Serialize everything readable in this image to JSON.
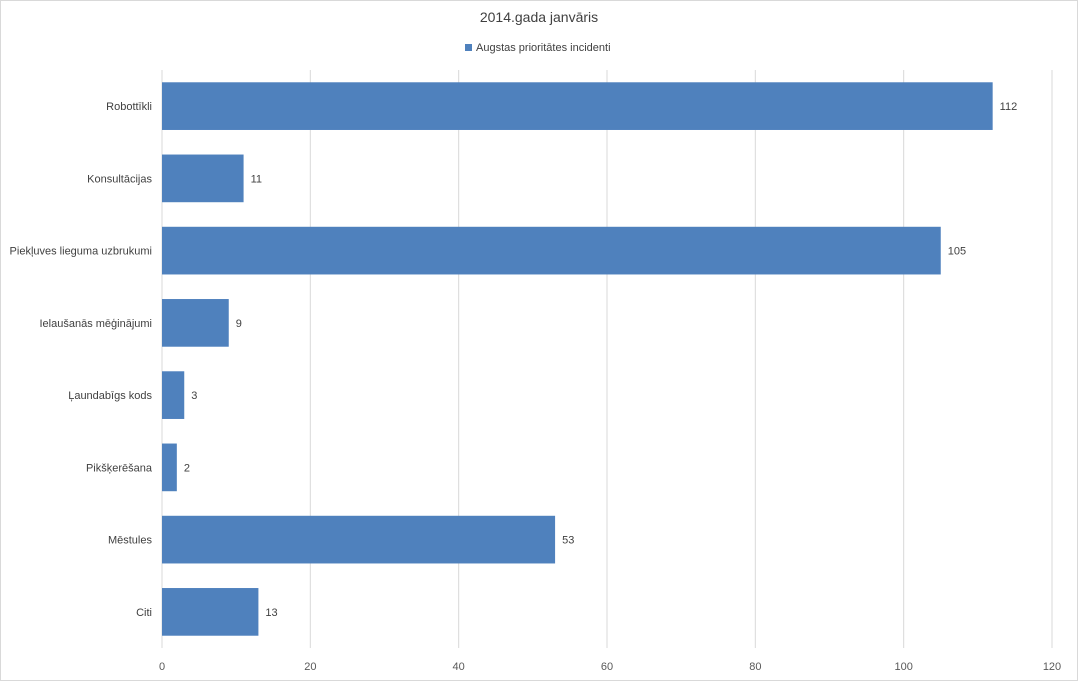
{
  "chart_data": {
    "type": "bar",
    "orientation": "horizontal",
    "title": "2014.gada janvāris",
    "xlabel": "",
    "ylabel": "",
    "xlim": [
      0,
      120
    ],
    "x_ticks": [
      0,
      20,
      40,
      60,
      80,
      100,
      120
    ],
    "grid": "vertical",
    "legend_position": "top",
    "categories": [
      "Robottīkli",
      "Konsultācijas",
      "Piekļuves lieguma uzbrukumi",
      "Ielaušanās mēģinājumi",
      "Ļaundabīgs kods",
      "Pikšķerēšana",
      "Mēstules",
      "Citi"
    ],
    "series": [
      {
        "name": "Augstas prioritātes incidenti",
        "color": "#4f81bd",
        "values": [
          112,
          11,
          105,
          9,
          3,
          2,
          53,
          13
        ]
      }
    ],
    "data_labels": true
  }
}
